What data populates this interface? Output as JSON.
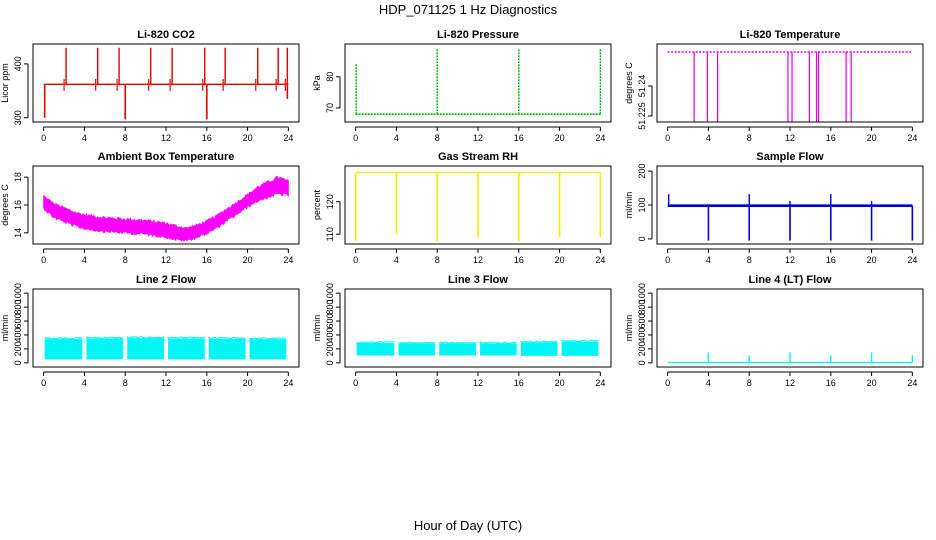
{
  "figure": {
    "title": "HDP_071125  1 Hz Diagnostics",
    "xlabel": "Hour of Day (UTC)"
  },
  "chart_data": [
    {
      "name": "co2",
      "type": "line",
      "title": "Li-820 CO2",
      "ylabel": "Licor ppm",
      "color": "#dd0000",
      "xlim": [
        0,
        24
      ],
      "xticks": [
        0,
        4,
        8,
        12,
        16,
        20,
        24
      ],
      "ylim": [
        292,
        437
      ],
      "yticks": [
        300,
        400
      ],
      "baseline": 362,
      "spikes_up": [
        {
          "x": 2.2,
          "y": 430
        },
        {
          "x": 5.3,
          "y": 430
        },
        {
          "x": 7.4,
          "y": 430
        },
        {
          "x": 10.5,
          "y": 430
        },
        {
          "x": 12.6,
          "y": 430
        },
        {
          "x": 15.8,
          "y": 430
        },
        {
          "x": 17.8,
          "y": 430
        },
        {
          "x": 21.0,
          "y": 430
        },
        {
          "x": 23.0,
          "y": 430
        },
        {
          "x": 23.9,
          "y": 430
        }
      ],
      "spikes_down": [
        {
          "x": 0.1,
          "y": 300
        },
        {
          "x": 8.0,
          "y": 297
        },
        {
          "x": 16.0,
          "y": 297
        },
        {
          "x": 23.9,
          "y": 335
        }
      ]
    },
    {
      "name": "pressure",
      "type": "line",
      "title": "Li-820 Pressure",
      "ylabel": "kPa",
      "color": "#00b400",
      "xlim": [
        0,
        24
      ],
      "xticks": [
        0,
        4,
        8,
        12,
        16,
        20,
        24
      ],
      "ylim": [
        65.5,
        90.5
      ],
      "yticks": [
        70,
        80
      ],
      "baseline": 68,
      "spikes_up": [
        {
          "x": 0.05,
          "y": 84
        },
        {
          "x": 8.0,
          "y": 89
        },
        {
          "x": 16.0,
          "y": 89
        },
        {
          "x": 24.0,
          "y": 89
        }
      ]
    },
    {
      "name": "licor_temp",
      "type": "line",
      "title": "Li-820 Temperature",
      "ylabel": "degrees C",
      "color": "#e000e0",
      "xlim": [
        0,
        24
      ],
      "xticks": [
        0,
        4,
        8,
        12,
        16,
        20,
        24
      ],
      "ylim": [
        51.222,
        51.261
      ],
      "yticks": [
        51.225,
        51.24
      ],
      "baseline": 51.257,
      "dropouts": [
        2.6,
        3.9,
        4.9,
        11.8,
        12.2,
        13.9,
        14.6,
        14.8,
        17.5,
        18.0
      ]
    },
    {
      "name": "ambient_box_temp",
      "type": "area",
      "title": "Ambient Box Temperature",
      "ylabel": "degrees C",
      "color": "#ff00ff",
      "xlim": [
        0,
        24
      ],
      "xticks": [
        0,
        4,
        8,
        12,
        16,
        20,
        24
      ],
      "ylim": [
        13.2,
        18.8
      ],
      "yticks": [
        14,
        16,
        18
      ],
      "x": [
        0,
        1,
        2,
        3,
        4,
        5,
        6,
        7,
        8,
        9,
        10,
        11,
        12,
        13,
        14,
        15,
        16,
        17,
        18,
        19,
        20,
        21,
        22,
        23,
        24
      ],
      "mean": [
        16.2,
        15.6,
        15.3,
        15.0,
        14.8,
        14.7,
        14.6,
        14.55,
        14.5,
        14.45,
        14.4,
        14.3,
        14.2,
        14.0,
        13.9,
        14.1,
        14.4,
        14.8,
        15.3,
        15.8,
        16.3,
        16.8,
        17.1,
        17.4,
        17.2
      ],
      "half_range": [
        0.45,
        0.5,
        0.5,
        0.5,
        0.5,
        0.5,
        0.5,
        0.5,
        0.5,
        0.5,
        0.5,
        0.5,
        0.5,
        0.5,
        0.45,
        0.45,
        0.45,
        0.45,
        0.45,
        0.45,
        0.45,
        0.5,
        0.55,
        0.6,
        0.5
      ]
    },
    {
      "name": "gas_stream_rh",
      "type": "line",
      "title": "Gas Stream RH",
      "ylabel": "percent",
      "color": "#f0f000",
      "xlim": [
        0,
        24
      ],
      "xticks": [
        0,
        4,
        8,
        12,
        16,
        20,
        24
      ],
      "ylim": [
        107,
        131
      ],
      "yticks": [
        110,
        120
      ],
      "baseline": 129,
      "spikes_down": [
        {
          "x": 0.0,
          "y": 108
        },
        {
          "x": 4.0,
          "y": 110
        },
        {
          "x": 8.0,
          "y": 108
        },
        {
          "x": 12.0,
          "y": 109
        },
        {
          "x": 16.0,
          "y": 108
        },
        {
          "x": 20.0,
          "y": 109
        },
        {
          "x": 24.0,
          "y": 109
        }
      ]
    },
    {
      "name": "sample_flow",
      "type": "line",
      "title": "Sample Flow",
      "ylabel": "ml/min",
      "color": "#0000dd",
      "xlim": [
        0,
        24
      ],
      "xticks": [
        0,
        4,
        8,
        12,
        16,
        20,
        24
      ],
      "ylim": [
        -15,
        215
      ],
      "yticks": [
        0,
        100,
        200
      ],
      "baseline": 98,
      "spikes_up": [
        {
          "x": 0.1,
          "y": 132
        },
        {
          "x": 8.0,
          "y": 132
        },
        {
          "x": 12.0,
          "y": 112
        },
        {
          "x": 16.0,
          "y": 132
        },
        {
          "x": 20.0,
          "y": 112
        }
      ],
      "spikes_down": [
        {
          "x": 4.0,
          "y": -5
        },
        {
          "x": 8.0,
          "y": -5
        },
        {
          "x": 12.0,
          "y": -5
        },
        {
          "x": 16.0,
          "y": -5
        },
        {
          "x": 20.0,
          "y": -5
        },
        {
          "x": 24.0,
          "y": -5
        }
      ]
    },
    {
      "name": "line2_flow",
      "type": "band",
      "title": "Line 2 Flow",
      "ylabel": "ml/min",
      "color": "#00f5f5",
      "xlim": [
        0,
        24
      ],
      "xticks": [
        0,
        4,
        8,
        12,
        16,
        20,
        24
      ],
      "ylim": [
        -60,
        1060
      ],
      "yticks": [
        0,
        200,
        400,
        600,
        800,
        1000
      ],
      "segments": [
        {
          "start": 0.1,
          "end": 3.8,
          "low": 50,
          "high": 345
        },
        {
          "start": 4.2,
          "end": 7.8,
          "low": 50,
          "high": 350
        },
        {
          "start": 8.2,
          "end": 11.8,
          "low": 50,
          "high": 355
        },
        {
          "start": 12.2,
          "end": 15.8,
          "low": 50,
          "high": 350
        },
        {
          "start": 16.2,
          "end": 19.8,
          "low": 50,
          "high": 345
        },
        {
          "start": 20.2,
          "end": 23.8,
          "low": 50,
          "high": 340
        }
      ]
    },
    {
      "name": "line3_flow",
      "type": "band",
      "title": "Line 3 Flow",
      "ylabel": "ml/min",
      "color": "#00f5f5",
      "xlim": [
        0,
        24
      ],
      "xticks": [
        0,
        4,
        8,
        12,
        16,
        20,
        24
      ],
      "ylim": [
        -60,
        1060
      ],
      "yticks": [
        0,
        200,
        400,
        600,
        800,
        1000
      ],
      "segments": [
        {
          "start": 0.1,
          "end": 3.8,
          "low": 105,
          "high": 285
        },
        {
          "start": 4.2,
          "end": 7.8,
          "low": 105,
          "high": 280
        },
        {
          "start": 8.2,
          "end": 11.8,
          "low": 105,
          "high": 280
        },
        {
          "start": 12.2,
          "end": 15.8,
          "low": 105,
          "high": 280
        },
        {
          "start": 16.2,
          "end": 19.8,
          "low": 100,
          "high": 295
        },
        {
          "start": 20.2,
          "end": 23.8,
          "low": 100,
          "high": 305
        }
      ]
    },
    {
      "name": "line4_flow",
      "type": "line",
      "title": "Line 4 (LT) Flow",
      "ylabel": "ml/min",
      "color": "#00f5f5",
      "xlim": [
        0,
        24
      ],
      "xticks": [
        0,
        4,
        8,
        12,
        16,
        20,
        24
      ],
      "ylim": [
        -60,
        1060
      ],
      "yticks": [
        0,
        200,
        400,
        600,
        800,
        1000
      ],
      "baseline": 5,
      "spikes_up": [
        {
          "x": 4.0,
          "y": 150
        },
        {
          "x": 8.0,
          "y": 110
        },
        {
          "x": 12.0,
          "y": 150
        },
        {
          "x": 16.0,
          "y": 110
        },
        {
          "x": 20.0,
          "y": 150
        },
        {
          "x": 24.0,
          "y": 110
        }
      ]
    }
  ]
}
